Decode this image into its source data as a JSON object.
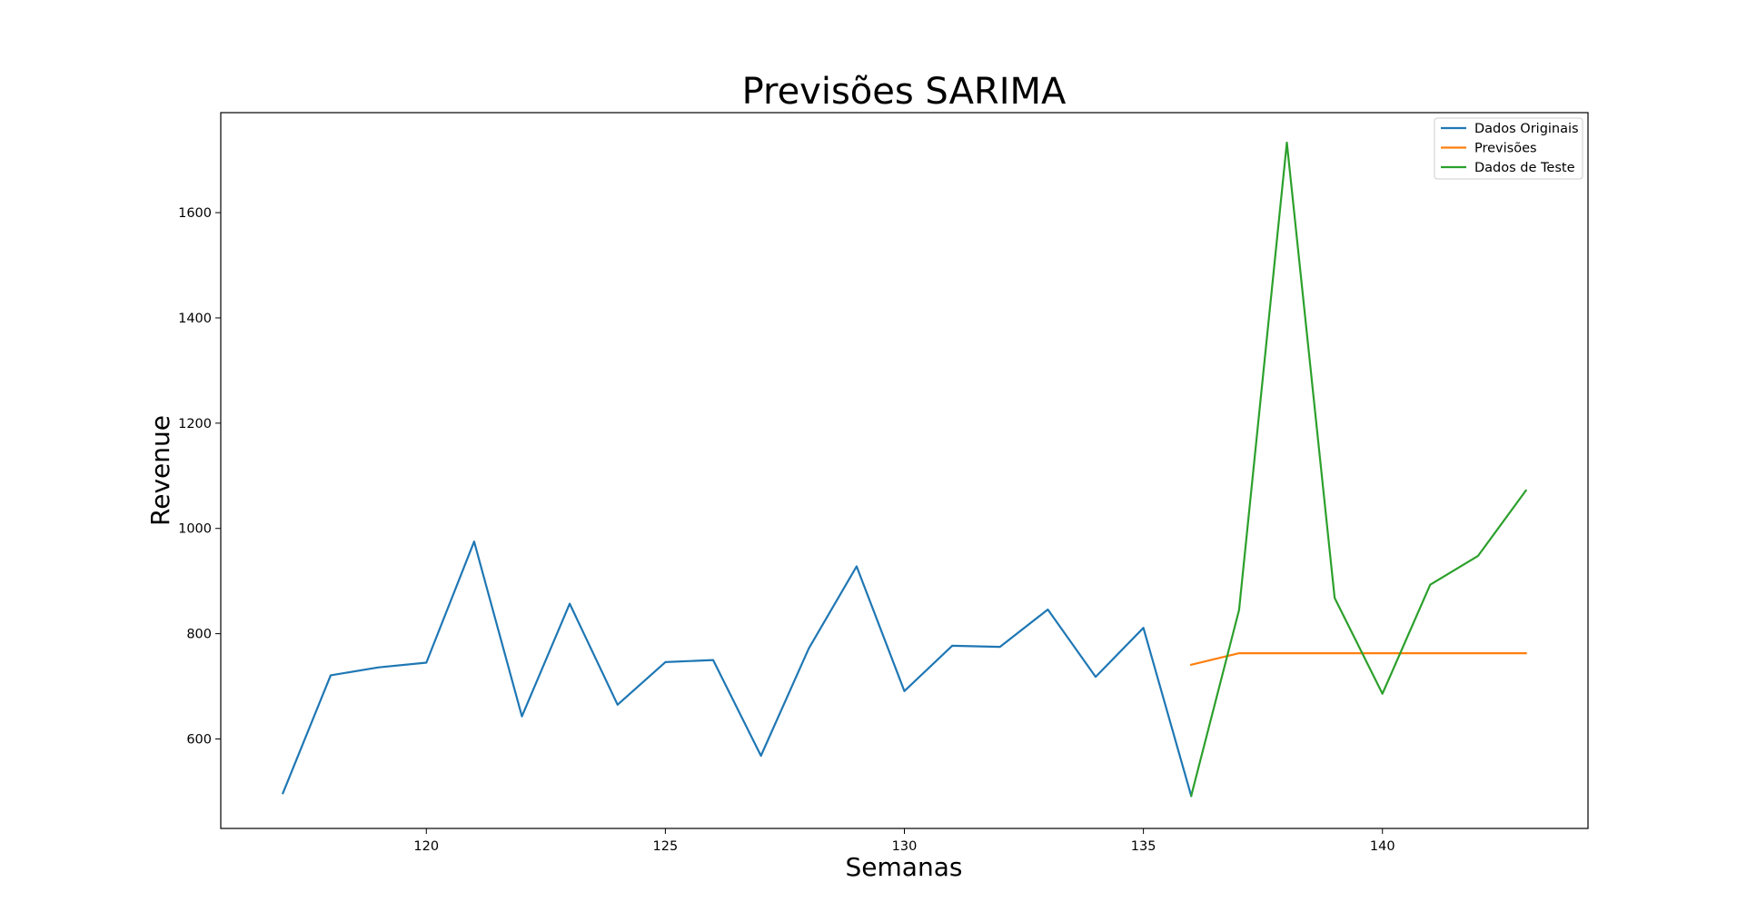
{
  "chart_data": {
    "type": "line",
    "title": "Previsões SARIMA",
    "xlabel": "Semanas",
    "ylabel": "Revenue",
    "xlim": [
      115.7,
      144.3
    ],
    "ylim": [
      430,
      1790
    ],
    "xticks": [
      120,
      125,
      130,
      135,
      140
    ],
    "yticks": [
      600,
      800,
      1000,
      1200,
      1400,
      1600
    ],
    "grid": false,
    "legend_position": "top-right",
    "series": [
      {
        "name": "Dados Originais",
        "color": "#1f77b4",
        "x": [
          117,
          118,
          119,
          120,
          121,
          122,
          123,
          124,
          125,
          126,
          127,
          128,
          129,
          130,
          131,
          132,
          133,
          134,
          135,
          136
        ],
        "y": [
          497,
          721,
          736,
          745,
          975,
          643,
          857,
          665,
          746,
          750,
          568,
          772,
          928,
          691,
          777,
          775,
          846,
          718,
          811,
          492
        ]
      },
      {
        "name": "Previsões",
        "color": "#ff7f0e",
        "x": [
          136,
          137,
          138,
          139,
          140,
          141,
          142,
          143
        ],
        "y": [
          741,
          763,
          763,
          763,
          763,
          763,
          763,
          763
        ]
      },
      {
        "name": "Dados de Teste",
        "color": "#2ca02c",
        "x": [
          136,
          137,
          138,
          139,
          140,
          141,
          142,
          143
        ],
        "y": [
          492,
          845,
          1733,
          868,
          686,
          893,
          948,
          1072
        ]
      }
    ]
  }
}
